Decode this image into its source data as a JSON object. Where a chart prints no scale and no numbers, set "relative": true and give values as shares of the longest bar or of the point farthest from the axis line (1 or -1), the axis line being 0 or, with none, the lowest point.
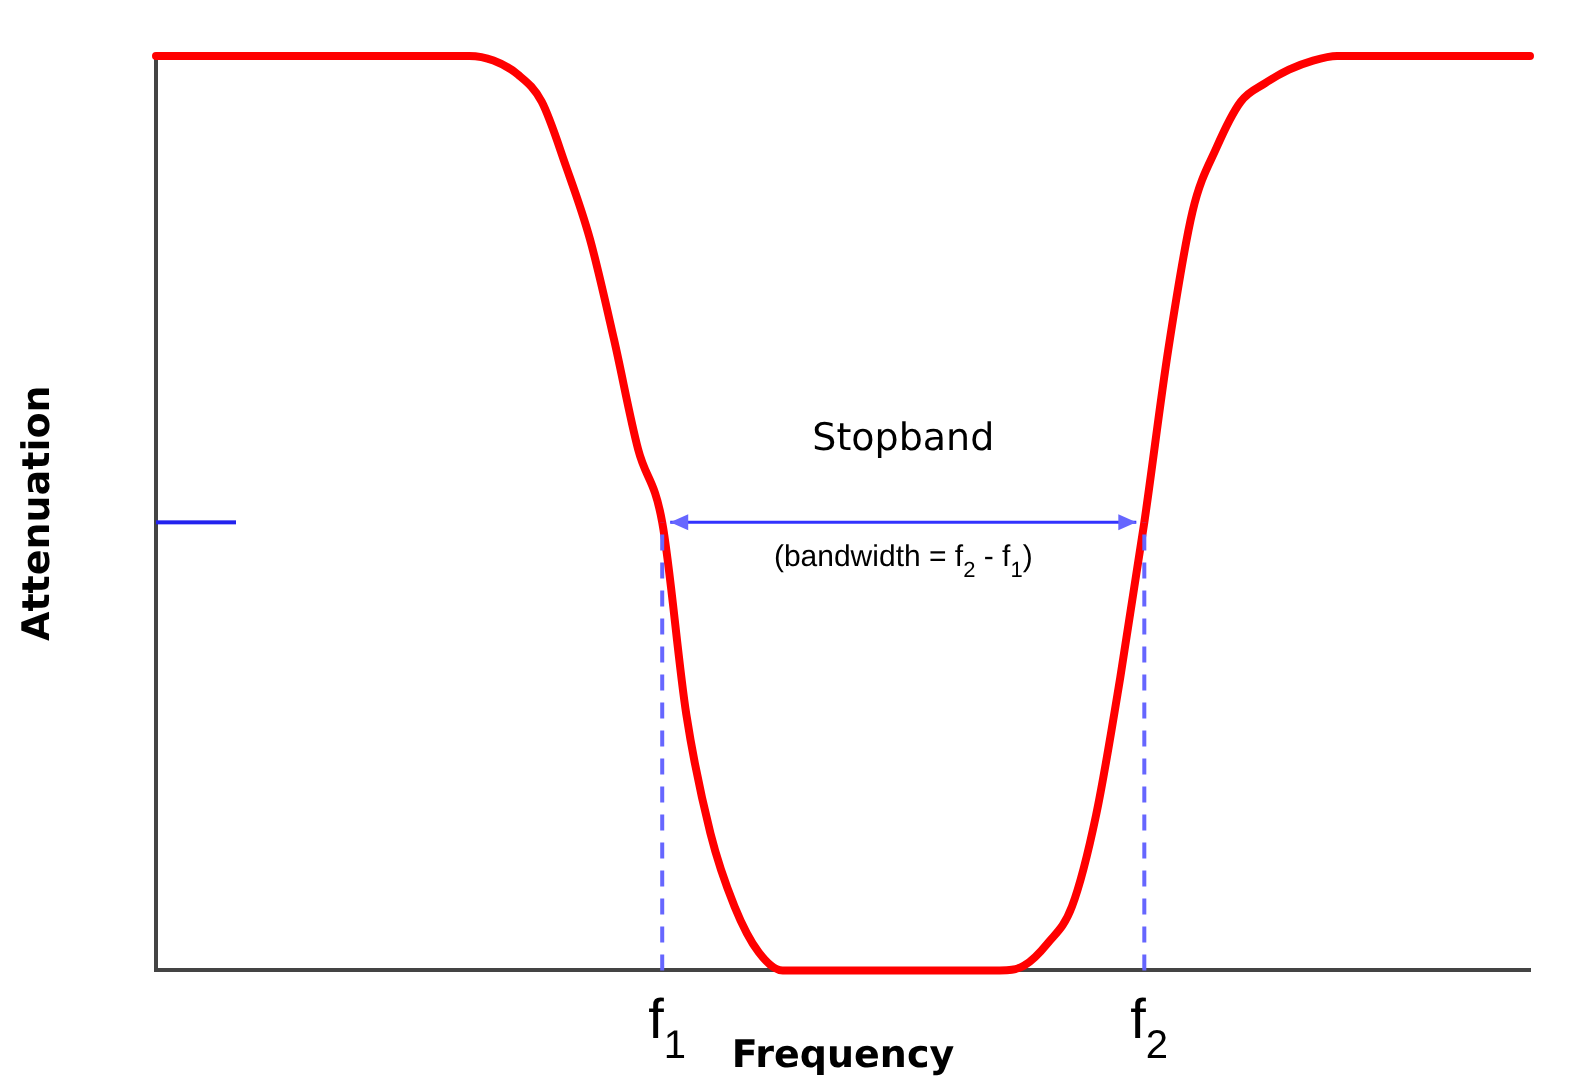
{
  "chart_data": {
    "type": "line",
    "relative": true,
    "xlabel": "Frequency",
    "ylabel": "Attenuation",
    "categories": [
      null,
      null,
      null,
      null,
      null,
      null,
      null,
      null,
      null,
      null,
      null,
      null,
      null,
      null,
      null,
      null,
      null,
      null,
      null,
      null,
      null,
      "f$_{1}$",
      null,
      null,
      null,
      null,
      null,
      null,
      null,
      null,
      null,
      null,
      null,
      null,
      null,
      null,
      null,
      null,
      null,
      null,
      null,
      "f$_{2}$",
      null,
      null,
      null,
      null,
      null,
      null,
      null,
      null,
      null,
      null,
      null,
      null,
      null,
      null,
      null,
      null
    ],
    "series": [
      {
        "color": "#ff0000",
        "values": [
          1,
          1,
          1,
          1,
          1,
          1,
          1,
          1,
          1,
          1,
          1,
          1,
          1,
          1,
          0.995,
          0.98,
          0.95,
          0.88,
          0.8,
          0.69,
          0.57,
          0.49,
          0.28,
          0.15,
          0.07,
          0.02,
          0,
          0,
          0,
          0,
          0,
          0,
          0,
          0,
          0,
          0,
          0.005,
          0.03,
          0.07,
          0.17,
          0.32,
          0.49,
          0.68,
          0.83,
          0.9,
          0.95,
          0.97,
          0.985,
          0.995,
          1,
          1,
          1,
          1,
          1,
          1,
          1,
          1,
          1
        ]
      }
    ],
    "ref_lines": [
      {
        "axis": "x",
        "value": "f$_{1}$",
        "color": "#6666ff",
        "line_style": "dashed"
      },
      {
        "axis": "x",
        "value": "f$_{2}$",
        "color": "#6666ff",
        "line_style": "dashed"
      }
    ],
    "annotations": [
      "Stopband",
      "(bandwidth = f$_{2}$ - f$_{1}$)"
    ],
    "grid": false,
    "legend": false,
    "marker": "none",
    "line_style": "solid"
  }
}
